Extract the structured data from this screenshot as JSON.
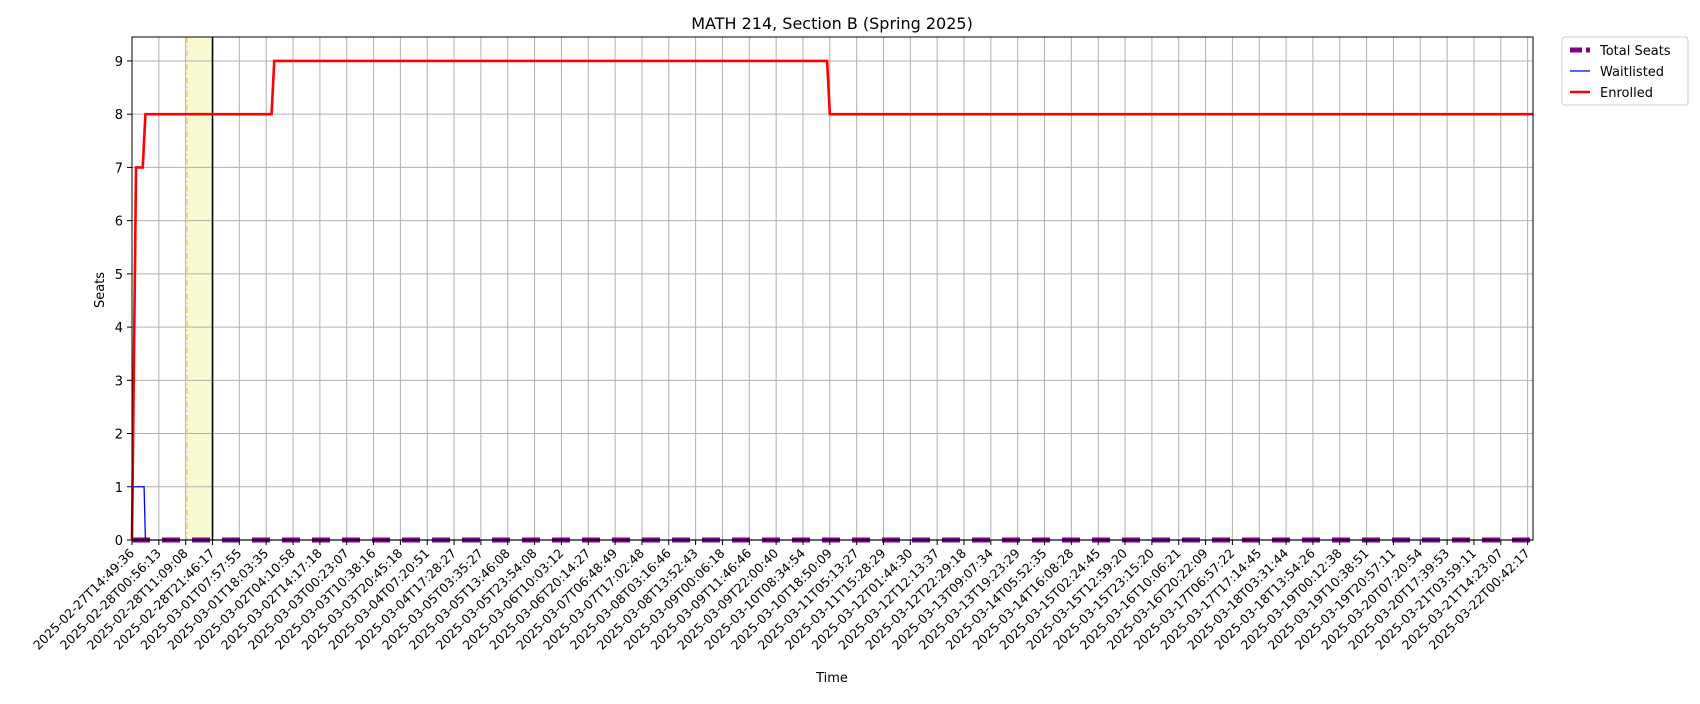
{
  "chart_data": {
    "type": "line",
    "title": "MATH 214, Section B (Spring 2025)",
    "xlabel": "Time",
    "ylabel": "Seats",
    "ylim": [
      0,
      9.45
    ],
    "yticks": [
      0,
      1,
      2,
      3,
      4,
      5,
      6,
      7,
      8,
      9
    ],
    "grid": true,
    "legend_position": "outside-top-right",
    "x_ticks": [
      "2025-02-27T14:49:36",
      "2025-02-28T00:56:13",
      "2025-02-28T11:09:08",
      "2025-02-28T21:46:17",
      "2025-03-01T07:57:55",
      "2025-03-01T18:03:35",
      "2025-03-02T04:10:58",
      "2025-03-02T14:17:18",
      "2025-03-03T00:23:07",
      "2025-03-03T10:38:16",
      "2025-03-03T20:45:18",
      "2025-03-04T07:20:51",
      "2025-03-04T17:28:27",
      "2025-03-05T03:35:27",
      "2025-03-05T13:46:08",
      "2025-03-05T23:54:08",
      "2025-03-06T10:03:12",
      "2025-03-06T20:14:27",
      "2025-03-07T06:48:49",
      "2025-03-07T17:02:48",
      "2025-03-08T03:16:46",
      "2025-03-08T13:52:43",
      "2025-03-09T00:06:18",
      "2025-03-09T11:46:46",
      "2025-03-09T22:00:40",
      "2025-03-10T08:34:54",
      "2025-03-10T18:50:09",
      "2025-03-11T05:13:27",
      "2025-03-11T15:28:29",
      "2025-03-12T01:44:30",
      "2025-03-12T12:13:37",
      "2025-03-12T22:29:18",
      "2025-03-13T09:07:34",
      "2025-03-13T19:23:29",
      "2025-03-14T05:52:35",
      "2025-03-14T16:08:28",
      "2025-03-15T02:24:45",
      "2025-03-15T12:59:20",
      "2025-03-15T23:15:20",
      "2025-03-16T10:06:21",
      "2025-03-16T20:22:09",
      "2025-03-17T06:57:22",
      "2025-03-17T17:14:45",
      "2025-03-18T03:31:44",
      "2025-03-18T13:54:26",
      "2025-03-19T00:12:38",
      "2025-03-19T10:38:51",
      "2025-03-19T20:57:11",
      "2025-03-20T07:20:54",
      "2025-03-20T17:39:53",
      "2025-03-21T03:59:11",
      "2025-03-21T14:23:07",
      "2025-03-22T00:42:17"
    ],
    "x_range": [
      0,
      52.2
    ],
    "series": [
      {
        "name": "Total Seats",
        "color": "#800080",
        "style": "dashed",
        "x": [
          0,
          52.2
        ],
        "values": [
          0,
          0
        ]
      },
      {
        "name": "Waitlisted",
        "color": "#0000ff",
        "style": "solid",
        "x": [
          0,
          0.05,
          0.45,
          0.5,
          52.2
        ],
        "values": [
          0,
          1,
          1,
          0,
          0
        ]
      },
      {
        "name": "Enrolled",
        "color": "#ff0000",
        "style": "solid",
        "x": [
          0,
          0.15,
          0.4,
          0.5,
          5.2,
          5.3,
          25.9,
          26.0,
          52.2
        ],
        "values": [
          0,
          7,
          7,
          8,
          8,
          9,
          9,
          8,
          8
        ]
      }
    ],
    "annotations": {
      "highlight_span": {
        "x0": 2.05,
        "x1": 3.0,
        "color": "#fafad2"
      },
      "dashdot_line": {
        "x": 2.05,
        "color": "#e5d44a"
      },
      "vertical_line": {
        "x": 3.0,
        "color": "#000000"
      }
    }
  }
}
